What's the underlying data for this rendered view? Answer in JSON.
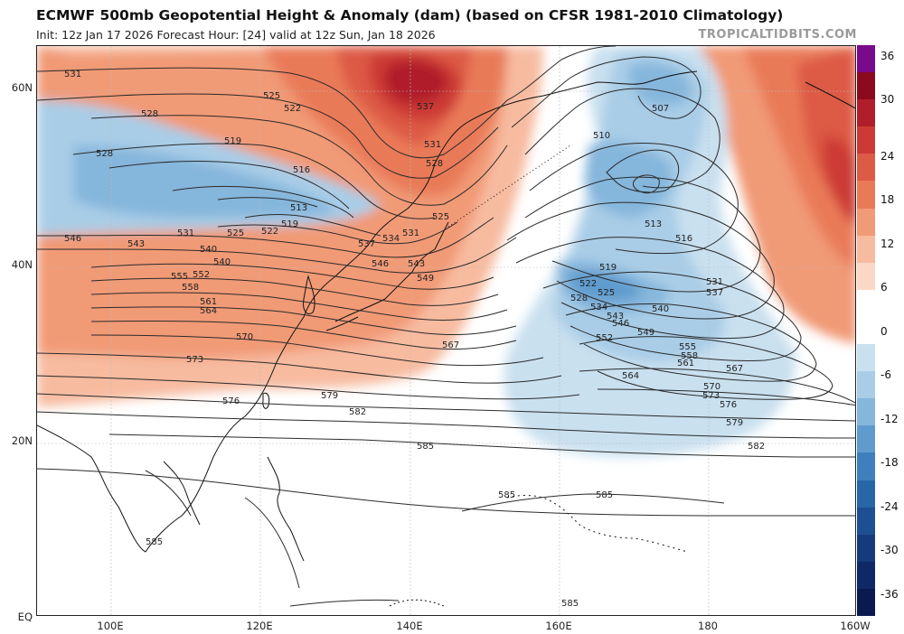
{
  "header": {
    "title": "ECMWF 500mb Geopotential Height & Anomaly (dam) (based on CFSR 1981-2010 Climatology)",
    "subtitle": "Init: 12z Jan 17 2026   Forecast Hour: [24]   valid at 12z Sun, Jan 18 2026",
    "credit": "TROPICALTIDBITS.COM"
  },
  "axes": {
    "lat_labels": [
      "60N",
      "40N",
      "20N",
      "EQ"
    ],
    "lon_labels": [
      "100E",
      "120E",
      "140E",
      "160E",
      "180",
      "160W"
    ]
  },
  "colorbar": {
    "labels": [
      "36",
      "30",
      "24",
      "18",
      "12",
      "6",
      "0",
      "-6",
      "-12",
      "-18",
      "-24",
      "-30",
      "-36"
    ],
    "colors": [
      "#7a0a8c",
      "#8b0a1e",
      "#b01d2b",
      "#cc3a35",
      "#dd5a44",
      "#e97a58",
      "#f19a76",
      "#f7bba0",
      "#fbd8c6",
      "#ffffff",
      "#ffffff",
      "#c9e0ef",
      "#a9cde7",
      "#85b6dc",
      "#5f9bcd",
      "#3f7fbd",
      "#2866a8",
      "#1d4f92",
      "#163b7c",
      "#0f2866",
      "#0a1a4e"
    ]
  },
  "contour_labels": [
    "531",
    "528",
    "525",
    "522",
    "519",
    "516",
    "513",
    "537",
    "531",
    "528",
    "525",
    "528",
    "519",
    "522",
    "525",
    "531",
    "546",
    "543",
    "540",
    "537",
    "534",
    "531",
    "552",
    "555",
    "558",
    "549",
    "546",
    "543",
    "540",
    "561",
    "564",
    "567",
    "570",
    "573",
    "576",
    "579",
    "582",
    "585",
    "507",
    "510",
    "513",
    "516",
    "519",
    "522",
    "525",
    "528",
    "531",
    "534",
    "537",
    "540",
    "543",
    "546",
    "549",
    "552",
    "555",
    "558",
    "561",
    "564",
    "567",
    "570",
    "573",
    "576",
    "579",
    "582",
    "585",
    "585",
    "585",
    "585"
  ]
}
